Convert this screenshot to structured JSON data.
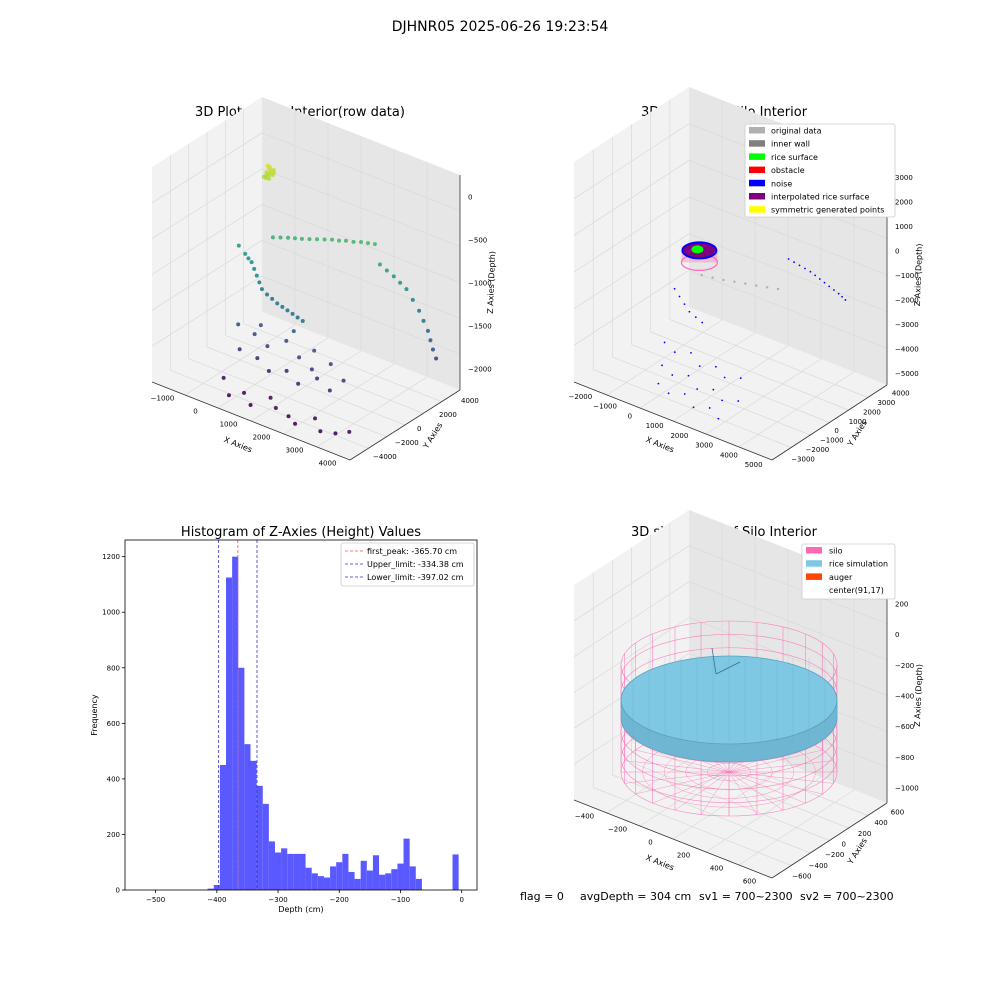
{
  "figure_title": "DJHNR05 2025-06-26 19:23:54",
  "footer": {
    "flag": "flag = 0",
    "avg_depth": "avgDepth = 304 cm",
    "sv1": "sv1 = 700~2300",
    "sv2": "sv2 = 700~2300"
  },
  "colors": {
    "pane": "#f2f2f2",
    "pane_side": "#e6e6e6",
    "grid": "#d9d9d9",
    "hist_bar": "#5050ff",
    "peak_line": "#ff4d4d",
    "limit_line": "#3333cc",
    "silo": "#ff69b4",
    "rice_sim": "#7ec8e3",
    "auger": "#ff4500"
  },
  "chart_data": [
    {
      "type": "scatter",
      "title": "3D Plot of Silo Interior(row data)",
      "xlabel": "X Axies",
      "ylabel": "Y Axies",
      "zlabel": "Z Axies (Depth)",
      "xticks": [
        "−1000",
        "0",
        "1000",
        "2000",
        "3000",
        "4000"
      ],
      "yticks": [
        "−4000",
        "−2000",
        "0",
        "2000",
        "4000"
      ],
      "zticks": [
        "0",
        "−500",
        "−1000",
        "−1500",
        "−2000"
      ],
      "xlim": [
        -1200,
        4000
      ],
      "ylim": [
        -4500,
        4500
      ],
      "zlim": [
        -2300,
        100
      ],
      "colormap": "viridis",
      "points": [
        [
          300,
          300,
          -150
        ],
        [
          350,
          250,
          -120
        ],
        [
          250,
          350,
          -140
        ],
        [
          400,
          300,
          -100
        ],
        [
          320,
          400,
          -130
        ],
        [
          280,
          200,
          -160
        ],
        [
          450,
          350,
          -110
        ],
        [
          380,
          150,
          -170
        ],
        [
          200,
          280,
          -190
        ],
        [
          420,
          420,
          -90
        ],
        [
          350,
          320,
          -60
        ],
        [
          300,
          360,
          -80
        ],
        [
          260,
          260,
          -170
        ],
        [
          360,
          210,
          -140
        ],
        [
          330,
          450,
          -110
        ],
        [
          240,
          330,
          -200
        ],
        [
          440,
          260,
          -130
        ],
        [
          300,
          300,
          -50
        ],
        [
          500,
          100,
          -800
        ],
        [
          800,
          400,
          -780
        ],
        [
          1100,
          600,
          -760
        ],
        [
          1400,
          900,
          -740
        ],
        [
          1700,
          1200,
          -720
        ],
        [
          2000,
          1400,
          -700
        ],
        [
          2300,
          1700,
          -690
        ],
        [
          2600,
          1900,
          -680
        ],
        [
          650,
          250,
          -790
        ],
        [
          950,
          500,
          -770
        ],
        [
          1250,
          750,
          -750
        ],
        [
          1550,
          1050,
          -730
        ],
        [
          1850,
          1300,
          -715
        ],
        [
          2150,
          1550,
          -700
        ],
        [
          2450,
          1800,
          -685
        ],
        [
          -300,
          -200,
          -1000
        ],
        [
          -100,
          -300,
          -1050
        ],
        [
          100,
          -400,
          -1100
        ],
        [
          300,
          -600,
          -1200
        ],
        [
          500,
          -800,
          -1300
        ],
        [
          800,
          -900,
          -1350
        ],
        [
          1100,
          -1000,
          -1380
        ],
        [
          1400,
          -1100,
          -1400
        ],
        [
          1700,
          -1200,
          -1420
        ],
        [
          0,
          -350,
          -1080
        ],
        [
          200,
          -500,
          -1150
        ],
        [
          400,
          -700,
          -1250
        ],
        [
          650,
          -850,
          -1330
        ],
        [
          950,
          -950,
          -1370
        ],
        [
          1250,
          -1050,
          -1390
        ],
        [
          1550,
          -1150,
          -1410
        ],
        [
          2700,
          2000,
          -900
        ],
        [
          3000,
          2200,
          -1000
        ],
        [
          3300,
          2300,
          -1100
        ],
        [
          3600,
          2400,
          -1300
        ],
        [
          3800,
          2500,
          -1500
        ],
        [
          3900,
          2600,
          -1700
        ],
        [
          3950,
          2700,
          -1800
        ],
        [
          2850,
          2100,
          -950
        ],
        [
          3150,
          2250,
          -1050
        ],
        [
          3450,
          2350,
          -1200
        ],
        [
          3700,
          2450,
          -1400
        ],
        [
          3850,
          2550,
          -1600
        ],
        [
          100,
          -1500,
          -1700
        ],
        [
          500,
          -1400,
          -1750
        ],
        [
          900,
          -1600,
          -1800
        ],
        [
          1300,
          -1300,
          -1700
        ],
        [
          1700,
          -1500,
          -1800
        ],
        [
          2100,
          -1700,
          -1850
        ],
        [
          2500,
          -1400,
          -1750
        ],
        [
          2900,
          -1600,
          -1850
        ],
        [
          300,
          -2000,
          -1900
        ],
        [
          700,
          -1800,
          -1950
        ],
        [
          1100,
          -2100,
          -2000
        ],
        [
          1500,
          -1900,
          -1950
        ],
        [
          1900,
          -2200,
          -2000
        ],
        [
          2300,
          -1900,
          -1900
        ],
        [
          2700,
          -2100,
          -1950
        ],
        [
          600,
          -1200,
          -1650
        ],
        [
          1400,
          -1000,
          -1600
        ],
        [
          2000,
          -1200,
          -1700
        ],
        [
          200,
          -3000,
          -2150
        ],
        [
          800,
          -3200,
          -2200
        ],
        [
          1400,
          -2900,
          -2180
        ],
        [
          2000,
          -3300,
          -2250
        ],
        [
          2600,
          -3000,
          -2200
        ],
        [
          3200,
          -3200,
          -2250
        ],
        [
          500,
          -3500,
          -2250
        ],
        [
          1100,
          -3600,
          -2250
        ],
        [
          1700,
          -3400,
          -2200
        ],
        [
          2300,
          -3700,
          -2250
        ],
        [
          2900,
          -3500,
          -2250
        ],
        [
          3500,
          -3000,
          -2200
        ]
      ]
    },
    {
      "type": "scatter",
      "title": "3D classify of Silo Interior",
      "xlabel": "X Axies",
      "ylabel": "Y Axies",
      "zlabel": "Z Axies (Depth)",
      "xticks": [
        "−2000",
        "−1000",
        "0",
        "1000",
        "2000",
        "3000",
        "4000",
        "5000"
      ],
      "yticks": [
        "−3000",
        "−2000",
        "−1000",
        "0",
        "1000",
        "2000",
        "3000",
        "4000"
      ],
      "zticks": [
        "−5000",
        "−4000",
        "−3000",
        "−2000",
        "−1000",
        "0",
        "1000",
        "2000",
        "3000"
      ],
      "xlim": [
        -2300,
        5200
      ],
      "ylim": [
        -3500,
        4200
      ],
      "zlim": [
        -5200,
        3300
      ],
      "legend": {
        "position": "top-right",
        "items": [
          {
            "label": "original data",
            "color": "#b0b0b0"
          },
          {
            "label": "inner wall",
            "color": "#808080"
          },
          {
            "label": "rice surface",
            "color": "#00ff00"
          },
          {
            "label": "obstacle",
            "color": "#ff0000"
          },
          {
            "label": "noise",
            "color": "#0000ff"
          },
          {
            "label": "interpolated rice surface",
            "color": "#800080"
          },
          {
            "label": "symmetric generated points",
            "color": "#ffff00"
          }
        ]
      },
      "noise_points": [
        [
          3000,
          1500,
          -200
        ],
        [
          3300,
          1700,
          -400
        ],
        [
          3600,
          1900,
          -600
        ],
        [
          3900,
          2000,
          -800
        ],
        [
          4200,
          2100,
          -1000
        ],
        [
          4500,
          2200,
          -1200
        ],
        [
          4700,
          2300,
          -1400
        ],
        [
          3150,
          1600,
          -300
        ],
        [
          3450,
          1800,
          -500
        ],
        [
          3750,
          1950,
          -700
        ],
        [
          4050,
          2050,
          -900
        ],
        [
          4350,
          2150,
          -1100
        ],
        [
          4600,
          2250,
          -1300
        ],
        [
          -300,
          -300,
          -2000
        ],
        [
          0,
          -500,
          -2100
        ],
        [
          300,
          -700,
          -2200
        ],
        [
          600,
          -900,
          -2300
        ],
        [
          900,
          -1000,
          -2350
        ],
        [
          1200,
          -1100,
          -2400
        ],
        [
          0,
          -1500,
          -3500
        ],
        [
          500,
          -1700,
          -3600
        ],
        [
          1000,
          -1500,
          -3500
        ],
        [
          1500,
          -1800,
          -3700
        ],
        [
          2000,
          -1600,
          -3600
        ],
        [
          2500,
          -1900,
          -3700
        ],
        [
          3000,
          -1700,
          -3600
        ],
        [
          300,
          -2200,
          -4000
        ],
        [
          800,
          -2400,
          -4100
        ],
        [
          1300,
          -2200,
          -4000
        ],
        [
          1800,
          -2500,
          -4200
        ],
        [
          2300,
          -2300,
          -4100
        ],
        [
          2800,
          -2600,
          -4200
        ],
        [
          3300,
          -2400,
          -4100
        ],
        [
          500,
          -2800,
          -4400
        ],
        [
          1000,
          -3000,
          -4500
        ],
        [
          1500,
          -2800,
          -4400
        ],
        [
          2000,
          -3100,
          -4600
        ],
        [
          2500,
          -2900,
          -4500
        ],
        [
          3000,
          -3200,
          -4600
        ]
      ],
      "original_points": [
        [
          500,
          100,
          -1300
        ],
        [
          800,
          300,
          -1350
        ],
        [
          1100,
          500,
          -1400
        ],
        [
          1400,
          700,
          -1420
        ],
        [
          1700,
          900,
          -1450
        ],
        [
          2000,
          1100,
          -1480
        ],
        [
          2300,
          1300,
          -1500
        ],
        [
          2600,
          1500,
          -1520
        ]
      ],
      "rice_ring": {
        "center": [
          300,
          300,
          -500
        ],
        "radius": 450,
        "color_ring": "#0000ff",
        "color_fill": "#800080",
        "color_surface": "#00ff00",
        "color_obstacle": "#ff69b4"
      }
    },
    {
      "type": "bar",
      "title": "Histogram of Z-Axies (Height) Values",
      "xlabel": "Depth (cm)",
      "ylabel": "Frequency",
      "xlim": [
        -550,
        25
      ],
      "ylim": [
        0,
        1260
      ],
      "xticks": [
        -500,
        -400,
        -300,
        -200,
        -100,
        0
      ],
      "yticks": [
        0,
        200,
        400,
        600,
        800,
        1000,
        1200
      ],
      "bin_width": 10,
      "bins": [
        {
          "x": -410,
          "count": 5
        },
        {
          "x": -400,
          "count": 18
        },
        {
          "x": -390,
          "count": 450
        },
        {
          "x": -380,
          "count": 1125
        },
        {
          "x": -370,
          "count": 1200
        },
        {
          "x": -360,
          "count": 800
        },
        {
          "x": -350,
          "count": 525
        },
        {
          "x": -340,
          "count": 465
        },
        {
          "x": -330,
          "count": 375
        },
        {
          "x": -320,
          "count": 310
        },
        {
          "x": -310,
          "count": 175
        },
        {
          "x": -300,
          "count": 135
        },
        {
          "x": -290,
          "count": 150
        },
        {
          "x": -280,
          "count": 130
        },
        {
          "x": -270,
          "count": 130
        },
        {
          "x": -260,
          "count": 130
        },
        {
          "x": -250,
          "count": 80
        },
        {
          "x": -240,
          "count": 60
        },
        {
          "x": -230,
          "count": 50
        },
        {
          "x": -220,
          "count": 45
        },
        {
          "x": -210,
          "count": 85
        },
        {
          "x": -200,
          "count": 100
        },
        {
          "x": -190,
          "count": 130
        },
        {
          "x": -180,
          "count": 65
        },
        {
          "x": -170,
          "count": 40
        },
        {
          "x": -160,
          "count": 105
        },
        {
          "x": -150,
          "count": 70
        },
        {
          "x": -140,
          "count": 125
        },
        {
          "x": -130,
          "count": 55
        },
        {
          "x": -120,
          "count": 60
        },
        {
          "x": -110,
          "count": 75
        },
        {
          "x": -100,
          "count": 95
        },
        {
          "x": -90,
          "count": 185
        },
        {
          "x": -80,
          "count": 85
        },
        {
          "x": -70,
          "count": 40
        },
        {
          "x": -60,
          "count": 0
        },
        {
          "x": -50,
          "count": 0
        },
        {
          "x": -40,
          "count": 0
        },
        {
          "x": -10,
          "count": 128
        }
      ],
      "vlines": [
        {
          "label": "first_peak: -365.70 cm",
          "x": -365.7,
          "color": "#ff4d4d"
        },
        {
          "label": "Upper_limit: -334.38 cm",
          "x": -334.38,
          "color": "#3333cc"
        },
        {
          "label": "Lower_limit: -397.02 cm",
          "x": -397.02,
          "color": "#3333cc"
        }
      ],
      "legend_position": "top-right"
    },
    {
      "type": "scatter",
      "title": "3D simulation of Silo Interior",
      "xlabel": "X Axies",
      "ylabel": "Y Axies",
      "zlabel": "Z Axies (Depth)",
      "xticks": [
        "−400",
        "−200",
        "0",
        "200",
        "400",
        "600"
      ],
      "yticks": [
        "−600",
        "−400",
        "−200",
        "0",
        "200",
        "400",
        "600"
      ],
      "zticks": [
        "−1000",
        "−800",
        "−600",
        "−400",
        "−200",
        "0",
        "200"
      ],
      "legend": {
        "position": "top-right",
        "items": [
          {
            "label": "silo",
            "color": "#ff69b4"
          },
          {
            "label": "rice simulation",
            "color": "#7ec8e3"
          },
          {
            "label": "auger",
            "color": "#ff4500"
          },
          {
            "label": "center(91,17)",
            "color": "#ffffff"
          }
        ]
      }
    }
  ]
}
